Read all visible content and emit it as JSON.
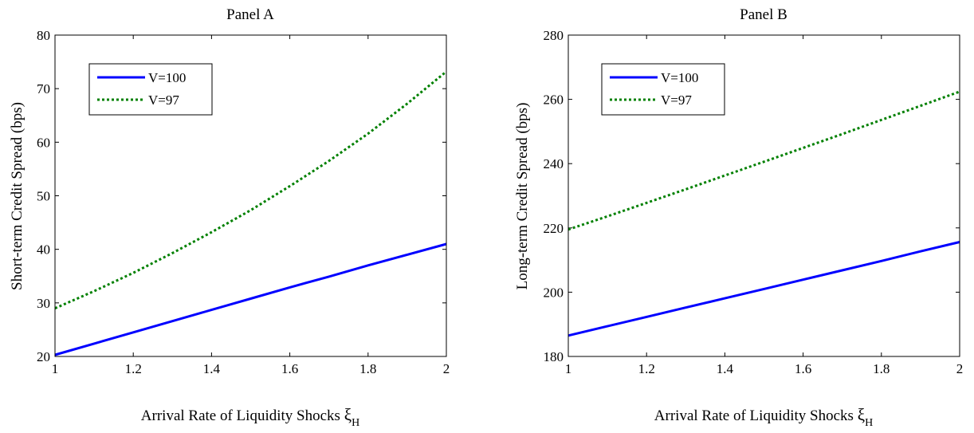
{
  "chart_data": [
    {
      "type": "line",
      "title": "Panel A",
      "xlabel": "Arrival Rate of Liquidity Shocks",
      "xlabel_symbol": "ξ",
      "xlabel_subscript": "H",
      "ylabel": "Short-term Credit Spread (bps)",
      "xlim": [
        1,
        2
      ],
      "ylim": [
        20,
        80
      ],
      "xticks": [
        1,
        1.2,
        1.4,
        1.6,
        1.8,
        2
      ],
      "yticks": [
        20,
        30,
        40,
        50,
        60,
        70,
        80
      ],
      "legend_position": "top-left",
      "grid": false,
      "series": [
        {
          "name": "V=100",
          "color": "#0000ff",
          "style": "solid",
          "x": [
            1,
            1.1,
            1.2,
            1.3,
            1.4,
            1.5,
            1.6,
            1.7,
            1.8,
            1.9,
            2
          ],
          "y": [
            20.3,
            22.4,
            24.5,
            26.6,
            28.7,
            30.8,
            32.9,
            34.9,
            37.0,
            39.0,
            41.0
          ]
        },
        {
          "name": "V=97",
          "color": "#008000",
          "style": "dotted",
          "x": [
            1,
            1.1,
            1.2,
            1.3,
            1.4,
            1.5,
            1.6,
            1.7,
            1.8,
            1.9,
            2
          ],
          "y": [
            29.0,
            32.2,
            35.6,
            39.3,
            43.2,
            47.3,
            51.8,
            56.5,
            61.6,
            67.2,
            73.2
          ]
        }
      ]
    },
    {
      "type": "line",
      "title": "Panel B",
      "xlabel": "Arrival Rate of Liquidity Shocks",
      "xlabel_symbol": "ξ",
      "xlabel_subscript": "H",
      "ylabel": "Long-term Credit Spread (bps)",
      "xlim": [
        1,
        2
      ],
      "ylim": [
        180,
        280
      ],
      "xticks": [
        1,
        1.2,
        1.4,
        1.6,
        1.8,
        2
      ],
      "yticks": [
        180,
        200,
        220,
        240,
        260,
        280
      ],
      "legend_position": "top-left",
      "grid": false,
      "series": [
        {
          "name": "V=100",
          "color": "#0000ff",
          "style": "solid",
          "x": [
            1,
            1.1,
            1.2,
            1.3,
            1.4,
            1.5,
            1.6,
            1.7,
            1.8,
            1.9,
            2
          ],
          "y": [
            186.5,
            189.4,
            192.3,
            195.2,
            198.1,
            201.0,
            203.9,
            206.8,
            209.7,
            212.7,
            215.6
          ]
        },
        {
          "name": "V=97",
          "color": "#008000",
          "style": "dotted",
          "x": [
            1,
            1.1,
            1.2,
            1.3,
            1.4,
            1.5,
            1.6,
            1.7,
            1.8,
            1.9,
            2
          ],
          "y": [
            219.5,
            223.6,
            227.8,
            232.0,
            236.3,
            240.6,
            244.9,
            249.2,
            253.6,
            258.0,
            262.4
          ]
        }
      ]
    }
  ]
}
